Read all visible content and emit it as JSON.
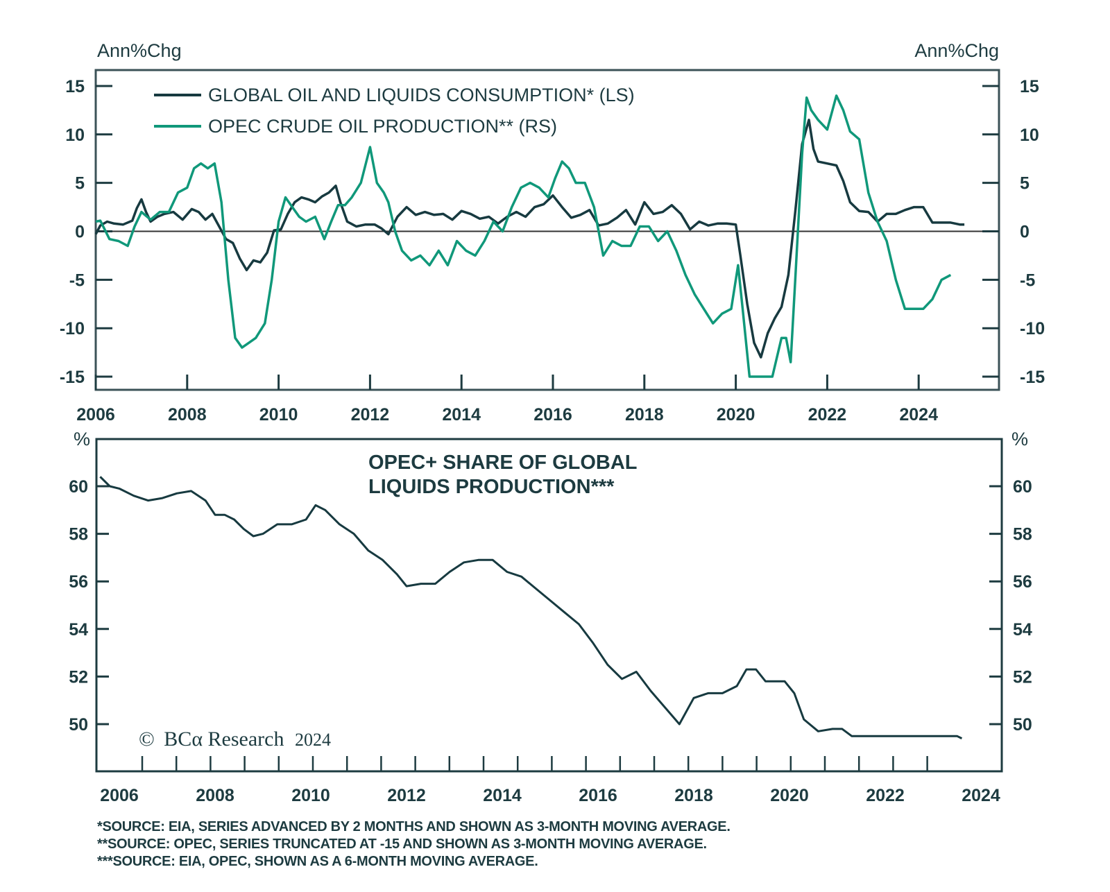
{
  "chart_data": [
    {
      "type": "line",
      "panel": "top",
      "title": "",
      "left_axis_label": "Ann%Chg",
      "right_axis_label": "Ann%Chg",
      "xlabel": "",
      "x_ticks": [
        2006,
        2008,
        2010,
        2012,
        2014,
        2016,
        2018,
        2020,
        2022,
        2024
      ],
      "xlim": [
        2006,
        2025.7
      ],
      "y_ticks": [
        15,
        10,
        5,
        0,
        -5,
        -10,
        -15
      ],
      "ylim": [
        -16.5,
        16.5
      ],
      "right_ylim": [
        -16.5,
        16.5
      ],
      "zero_line": true,
      "grid": false,
      "legend": {
        "placement": "top-left",
        "entries": [
          {
            "label": "GLOBAL OIL AND LIQUIDS CONSUMPTION* (LS)",
            "color": "#173a40"
          },
          {
            "label": "OPEC CRUDE OIL PRODUCTION** (RS)",
            "color": "#10987a"
          }
        ]
      },
      "series": [
        {
          "name": "GLOBAL OIL AND LIQUIDS CONSUMPTION* (LS)",
          "axis": "left",
          "color": "#173a40",
          "x": [
            2006.0,
            2006.1,
            2006.25,
            2006.4,
            2006.6,
            2006.8,
            2006.9,
            2007.0,
            2007.1,
            2007.2,
            2007.35,
            2007.5,
            2007.7,
            2007.9,
            2008.1,
            2008.25,
            2008.4,
            2008.55,
            2008.7,
            2008.85,
            2009.0,
            2009.15,
            2009.3,
            2009.45,
            2009.6,
            2009.75,
            2009.9,
            2010.05,
            2010.2,
            2010.35,
            2010.5,
            2010.65,
            2010.8,
            2010.95,
            2011.1,
            2011.25,
            2011.35,
            2011.5,
            2011.7,
            2011.9,
            2012.1,
            2012.25,
            2012.4,
            2012.6,
            2012.8,
            2013.0,
            2013.2,
            2013.4,
            2013.6,
            2013.8,
            2014.0,
            2014.2,
            2014.4,
            2014.6,
            2014.8,
            2015.0,
            2015.2,
            2015.4,
            2015.6,
            2015.8,
            2016.0,
            2016.2,
            2016.4,
            2016.6,
            2016.8,
            2017.0,
            2017.2,
            2017.4,
            2017.6,
            2017.8,
            2018.0,
            2018.2,
            2018.4,
            2018.6,
            2018.8,
            2019.0,
            2019.2,
            2019.4,
            2019.6,
            2019.8,
            2020.0,
            2020.1,
            2020.25,
            2020.4,
            2020.55,
            2020.7,
            2020.85,
            2021.0,
            2021.15,
            2021.3,
            2021.45,
            2021.6,
            2021.7,
            2021.8,
            2022.0,
            2022.2,
            2022.35,
            2022.5,
            2022.7,
            2022.9,
            2023.1,
            2023.3,
            2023.5,
            2023.7,
            2023.9,
            2024.1,
            2024.3,
            2024.5,
            2024.7,
            2024.9,
            2025.0
          ],
          "values": [
            -0.3,
            0.6,
            1.0,
            0.8,
            0.7,
            1.1,
            2.4,
            3.3,
            2.0,
            1.0,
            1.5,
            1.8,
            2.0,
            1.2,
            2.3,
            2.0,
            1.2,
            1.8,
            0.5,
            -0.8,
            -1.2,
            -2.8,
            -4.0,
            -3.0,
            -3.2,
            -2.2,
            0.1,
            0.2,
            1.8,
            3.0,
            3.5,
            3.3,
            3.0,
            3.6,
            4.0,
            4.7,
            3.0,
            1.0,
            0.5,
            0.7,
            0.7,
            0.3,
            -0.3,
            1.5,
            2.5,
            1.7,
            2.0,
            1.7,
            1.8,
            1.2,
            2.1,
            1.8,
            1.3,
            1.5,
            0.8,
            1.5,
            2.0,
            1.5,
            2.5,
            2.8,
            3.7,
            2.5,
            1.4,
            1.7,
            2.2,
            0.6,
            0.8,
            1.4,
            2.2,
            0.7,
            3.0,
            1.8,
            2.0,
            2.7,
            1.8,
            0.2,
            1.0,
            0.6,
            0.8,
            0.8,
            0.7,
            -2.5,
            -7.5,
            -11.5,
            -13.0,
            -10.5,
            -9.0,
            -7.8,
            -4.5,
            2.0,
            9.0,
            11.5,
            8.5,
            7.2,
            7.0,
            6.8,
            5.2,
            3.0,
            2.1,
            2.0,
            1.0,
            1.8,
            1.8,
            2.2,
            2.5,
            2.5,
            0.9,
            0.9,
            0.9,
            0.7,
            0.7
          ]
        },
        {
          "name": "OPEC CRUDE OIL PRODUCTION** (RS)",
          "axis": "right",
          "color": "#10987a",
          "x": [
            2006.0,
            2006.1,
            2006.3,
            2006.5,
            2006.7,
            2006.85,
            2007.0,
            2007.2,
            2007.4,
            2007.6,
            2007.8,
            2008.0,
            2008.15,
            2008.3,
            2008.45,
            2008.6,
            2008.75,
            2008.9,
            2009.05,
            2009.2,
            2009.35,
            2009.5,
            2009.7,
            2009.85,
            2010.0,
            2010.15,
            2010.3,
            2010.45,
            2010.6,
            2010.8,
            2011.0,
            2011.15,
            2011.3,
            2011.45,
            2011.6,
            2011.8,
            2012.0,
            2012.15,
            2012.3,
            2012.4,
            2012.55,
            2012.7,
            2012.9,
            2013.1,
            2013.3,
            2013.5,
            2013.7,
            2013.9,
            2014.1,
            2014.3,
            2014.5,
            2014.7,
            2014.9,
            2015.1,
            2015.3,
            2015.5,
            2015.7,
            2015.9,
            2016.05,
            2016.2,
            2016.35,
            2016.5,
            2016.7,
            2016.9,
            2017.1,
            2017.3,
            2017.5,
            2017.7,
            2017.9,
            2018.1,
            2018.3,
            2018.5,
            2018.7,
            2018.9,
            2019.1,
            2019.3,
            2019.5,
            2019.7,
            2019.9,
            2020.05,
            2020.15,
            2020.3,
            2020.45,
            2020.6,
            2020.8,
            2021.0,
            2021.1,
            2021.2,
            2021.3,
            2021.45,
            2021.55,
            2021.65,
            2021.8,
            2022.0,
            2022.2,
            2022.35,
            2022.5,
            2022.7,
            2022.9,
            2023.1,
            2023.3,
            2023.5,
            2023.7,
            2023.9,
            2024.1,
            2024.3,
            2024.5,
            2024.7
          ],
          "values": [
            1.0,
            1.1,
            -0.8,
            -1.0,
            -1.5,
            0.5,
            2.0,
            1.2,
            2.0,
            2.0,
            4.0,
            4.5,
            6.5,
            7.0,
            6.5,
            7.0,
            3.0,
            -5.0,
            -11.0,
            -12.0,
            -11.5,
            -11.0,
            -9.5,
            -5.0,
            1.0,
            3.5,
            2.5,
            1.5,
            1.0,
            1.5,
            -0.8,
            1.0,
            2.7,
            2.7,
            3.5,
            5.0,
            8.7,
            5.0,
            4.0,
            3.0,
            0.0,
            -2.0,
            -3.0,
            -2.5,
            -3.5,
            -2.0,
            -3.5,
            -1.0,
            -2.0,
            -2.5,
            -1.0,
            1.0,
            0.0,
            2.5,
            4.5,
            5.0,
            4.5,
            3.5,
            5.5,
            7.2,
            6.5,
            5.0,
            5.0,
            2.5,
            -2.5,
            -1.0,
            -1.5,
            -1.5,
            0.5,
            0.5,
            -1.0,
            0.0,
            -2.0,
            -4.5,
            -6.5,
            -8.0,
            -9.5,
            -8.5,
            -8.0,
            -3.5,
            -8.0,
            -15.0,
            -15.0,
            -15.0,
            -15.0,
            -11.0,
            -11.0,
            -13.5,
            -5.0,
            8.0,
            13.8,
            12.5,
            11.5,
            10.5,
            14.0,
            12.5,
            10.3,
            9.5,
            4.0,
            1.0,
            -1.0,
            -5.0,
            -8.0,
            -8.0,
            -8.0,
            -7.0,
            -5.0,
            -4.5
          ]
        }
      ]
    },
    {
      "type": "line",
      "panel": "bottom",
      "title": "OPEC+ SHARE OF GLOBAL LIQUIDS PRODUCTION***",
      "title_lines": [
        "OPEC+ SHARE OF GLOBAL",
        "LIQUIDS PRODUCTION***"
      ],
      "left_axis_label": "%",
      "right_axis_label": "%",
      "xlabel": "",
      "x_ticks": [
        2006,
        2008,
        2010,
        2012,
        2014,
        2016,
        2018,
        2020,
        2022,
        2024
      ],
      "xlim": [
        2005.5,
        2024.4
      ],
      "y_ticks": [
        60,
        58,
        56,
        54,
        52,
        50
      ],
      "ylim": [
        48.0,
        62.0
      ],
      "grid": false,
      "series": [
        {
          "name": "OPEC+ SHARE OF GLOBAL LIQUIDS PRODUCTION",
          "color": "#173a40",
          "x": [
            2005.6,
            2005.8,
            2006.0,
            2006.3,
            2006.6,
            2006.9,
            2007.2,
            2007.5,
            2007.8,
            2008.0,
            2008.2,
            2008.4,
            2008.6,
            2008.8,
            2009.0,
            2009.3,
            2009.6,
            2009.9,
            2010.1,
            2010.3,
            2010.6,
            2010.9,
            2011.2,
            2011.5,
            2011.8,
            2012.0,
            2012.3,
            2012.6,
            2012.9,
            2013.2,
            2013.5,
            2013.8,
            2014.1,
            2014.4,
            2014.7,
            2015.0,
            2015.3,
            2015.6,
            2015.9,
            2016.2,
            2016.5,
            2016.8,
            2017.1,
            2017.4,
            2017.7,
            2018.0,
            2018.3,
            2018.6,
            2018.9,
            2019.1,
            2019.3,
            2019.5,
            2019.7,
            2019.9,
            2020.1,
            2020.3,
            2020.6,
            2020.9,
            2021.1,
            2021.3,
            2021.6,
            2021.9,
            2022.1,
            2022.3,
            2022.6,
            2022.9,
            2023.1,
            2023.3,
            2023.5,
            2023.6
          ],
          "values": [
            60.4,
            60.0,
            59.9,
            59.6,
            59.4,
            59.5,
            59.7,
            59.8,
            59.4,
            58.8,
            58.8,
            58.6,
            58.2,
            57.9,
            58.0,
            58.4,
            58.4,
            58.6,
            59.2,
            59.0,
            58.4,
            58.0,
            57.3,
            56.9,
            56.3,
            55.8,
            55.9,
            55.9,
            56.4,
            56.8,
            56.9,
            56.9,
            56.4,
            56.2,
            55.7,
            55.2,
            54.7,
            54.2,
            53.4,
            52.5,
            51.9,
            52.2,
            51.4,
            50.7,
            50.0,
            51.1,
            51.3,
            51.3,
            51.6,
            52.3,
            52.3,
            51.8,
            51.8,
            51.8,
            51.3,
            50.2,
            49.7,
            49.8,
            49.8,
            49.5,
            49.5,
            49.5,
            49.5,
            49.5,
            49.5,
            49.5,
            49.5,
            49.5,
            49.5,
            49.4
          ]
        }
      ]
    }
  ],
  "watermark": {
    "copyright": "©",
    "brand": "BCα Research",
    "year": "2024"
  },
  "footnotes": [
    "*SOURCE: EIA, SERIES ADVANCED BY 2 MONTHS AND SHOWN AS 3-MONTH MOVING AVERAGE.",
    "**SOURCE: OPEC, SERIES TRUNCATED AT -15 AND SHOWN AS 3-MONTH MOVING AVERAGE.",
    "***SOURCE: EIA, OPEC, SHOWN AS A 6-MONTH MOVING AVERAGE."
  ]
}
